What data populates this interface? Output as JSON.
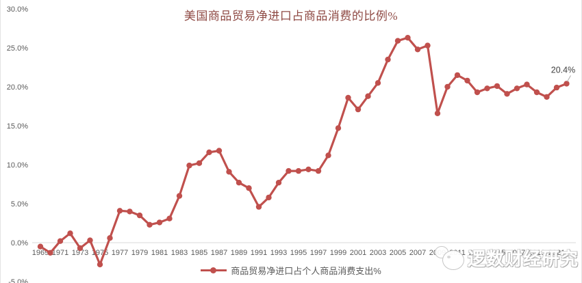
{
  "watermark": {
    "text": "逻数财经研究"
  },
  "annotation": {
    "year": 2022,
    "label": "20.4%"
  },
  "colors": {
    "line": "#C0504D",
    "marker": "#C0504D",
    "title_text": "#8F4A44",
    "axis_text": "#595959",
    "zero_gridline": "#D9D9D9",
    "annotation_text": "#404040",
    "leader_line": "#A6A6A6"
  },
  "chart_data": {
    "type": "line",
    "title": "美国商品贸易净进口占商品消费的比例%",
    "xlabel": "",
    "ylabel": "",
    "ylim": [
      -5,
      30
    ],
    "yticks": [
      30,
      25,
      20,
      15,
      10,
      5,
      0,
      -5
    ],
    "ytick_suffix": "%",
    "grid": "zero-line-only",
    "legend_position": "bottom-center",
    "x_tick_years": [
      1969,
      1971,
      1973,
      1975,
      1977,
      1979,
      1981,
      1983,
      1985,
      1987,
      1989,
      1991,
      1993,
      1995,
      1997,
      1999,
      2001,
      2003,
      2005,
      2007,
      2009,
      2011,
      2013,
      2015,
      2017,
      2019,
      2021
    ],
    "years": [
      1969,
      1970,
      1971,
      1972,
      1973,
      1974,
      1975,
      1976,
      1977,
      1978,
      1979,
      1980,
      1981,
      1982,
      1983,
      1984,
      1985,
      1986,
      1987,
      1988,
      1989,
      1990,
      1991,
      1992,
      1993,
      1994,
      1995,
      1996,
      1997,
      1998,
      1999,
      2000,
      2001,
      2002,
      2003,
      2004,
      2005,
      2006,
      2007,
      2008,
      2009,
      2010,
      2011,
      2012,
      2013,
      2014,
      2015,
      2016,
      2017,
      2018,
      2019,
      2020,
      2021,
      2022
    ],
    "series": [
      {
        "name": "商品贸易净进口占个人商品消费支出%",
        "values": [
          -0.5,
          -1.3,
          0.2,
          1.2,
          -0.7,
          0.3,
          -2.8,
          0.6,
          4.1,
          4.0,
          3.5,
          2.3,
          2.6,
          3.1,
          6.0,
          9.9,
          10.2,
          11.6,
          11.8,
          9.1,
          7.7,
          7.0,
          4.6,
          5.8,
          7.7,
          9.2,
          9.2,
          9.4,
          9.2,
          11.2,
          14.7,
          18.6,
          17.1,
          18.8,
          20.5,
          23.5,
          25.9,
          26.3,
          24.8,
          25.3,
          16.6,
          20.0,
          21.5,
          20.8,
          19.3,
          19.8,
          20.1,
          19.1,
          19.8,
          20.3,
          19.3,
          18.7,
          19.9,
          20.4
        ]
      }
    ],
    "data_labels": [
      {
        "year": 2022,
        "text": "20.4%"
      }
    ]
  }
}
